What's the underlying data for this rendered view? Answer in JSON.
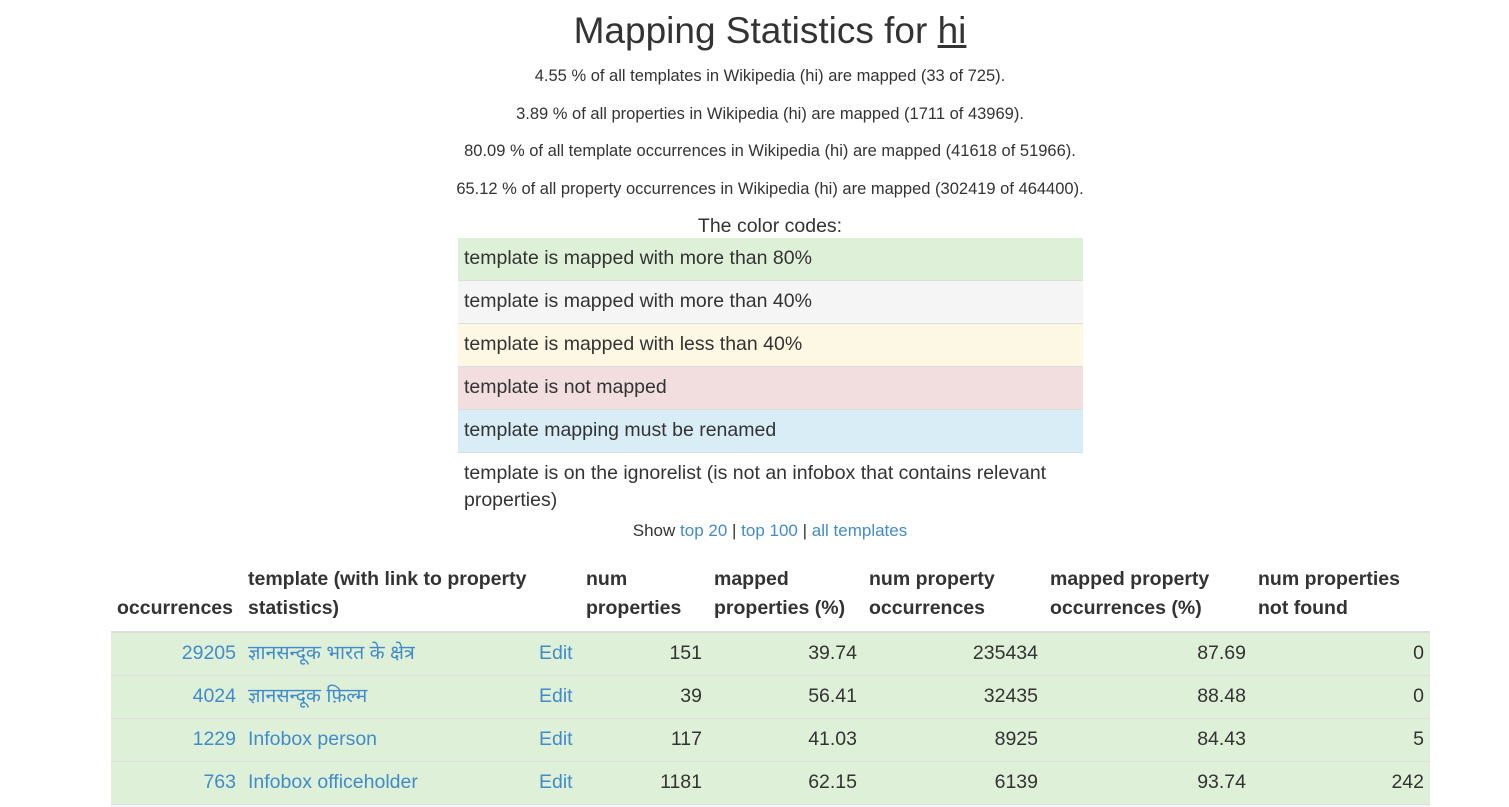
{
  "heading": {
    "prefix": "Mapping Statistics for",
    "lang": "hi"
  },
  "stats": [
    "4.55 % of all templates in Wikipedia (hi) are mapped (33 of 725).",
    "3.89 % of all properties in Wikipedia (hi) are mapped (1711 of 43969).",
    "80.09 % of all template occurrences in Wikipedia (hi) are mapped (41618 of 51966).",
    "65.12 % of all property occurrences in Wikipedia (hi) are mapped (302419 of 464400)."
  ],
  "legend": {
    "title": "The color codes:",
    "items": [
      {
        "label": "template is mapped with more than 80%",
        "color": "#dff0d8"
      },
      {
        "label": "template is mapped with more than 40%",
        "color": "#f5f5f5"
      },
      {
        "label": "template is mapped with less than 40%",
        "color": "#fcf8e3"
      },
      {
        "label": "template is not mapped",
        "color": "#f2dede"
      },
      {
        "label": "template mapping must be renamed",
        "color": "#d9edf7"
      },
      {
        "label": "template is on the ignorelist (is not an infobox that contains relevant properties)",
        "color": "#ffffff"
      }
    ]
  },
  "show": {
    "prefix": "Show",
    "links": [
      "top 20",
      "top 100",
      "all templates"
    ],
    "sep": "|"
  },
  "table": {
    "headers": [
      "occurrences",
      "template (with link to property statistics)",
      "",
      "num properties",
      "mapped properties (%)",
      "num property occurrences",
      "mapped property occurrences (%)",
      "num properties not found"
    ],
    "rows": [
      {
        "occurrences": "29205",
        "template": "ज्ञानसन्दूक भारत के क्षेत्र",
        "edit": "Edit",
        "num_properties": "151",
        "mapped_properties": "39.74",
        "num_property_occurrences": "235434",
        "mapped_property_occurrences": "87.69",
        "not_found": "0"
      },
      {
        "occurrences": "4024",
        "template": "ज्ञानसन्दूक फ़िल्म",
        "edit": "Edit",
        "num_properties": "39",
        "mapped_properties": "56.41",
        "num_property_occurrences": "32435",
        "mapped_property_occurrences": "88.48",
        "not_found": "0"
      },
      {
        "occurrences": "1229",
        "template": "Infobox person",
        "edit": "Edit",
        "num_properties": "117",
        "mapped_properties": "41.03",
        "num_property_occurrences": "8925",
        "mapped_property_occurrences": "84.43",
        "not_found": "5"
      },
      {
        "occurrences": "763",
        "template": "Infobox officeholder",
        "edit": "Edit",
        "num_properties": "1181",
        "mapped_properties": "62.15",
        "num_property_occurrences": "6139",
        "mapped_property_occurrences": "93.74",
        "not_found": "242"
      }
    ]
  },
  "colors": {
    "link": "#428bca",
    "text": "#333333",
    "mapped_80": "#dff0d8"
  }
}
